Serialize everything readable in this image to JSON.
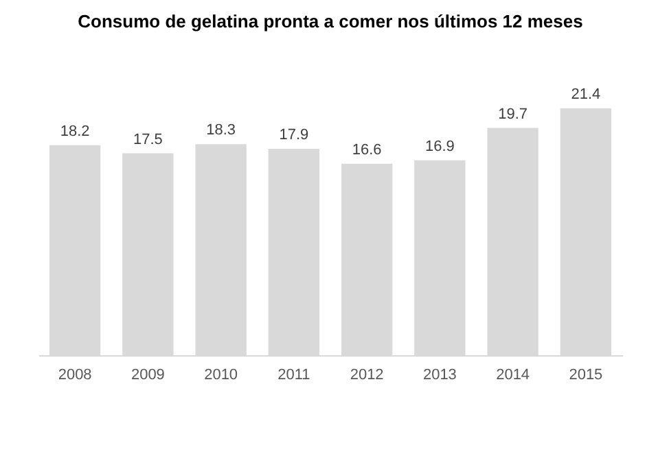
{
  "chart_data": {
    "type": "bar",
    "title": "Consumo de gelatina pronta a comer nos últimos 12 meses",
    "categories": [
      "2008",
      "2009",
      "2010",
      "2011",
      "2012",
      "2013",
      "2014",
      "2015"
    ],
    "values": [
      18.2,
      17.5,
      18.3,
      17.9,
      16.6,
      16.9,
      19.7,
      21.4
    ],
    "color": "#d9d9d9",
    "data_labels": true
  }
}
